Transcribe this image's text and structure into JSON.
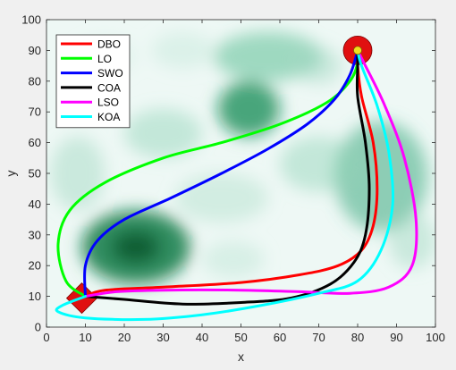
{
  "chart_data": {
    "type": "line",
    "xlabel": "x",
    "ylabel": "y",
    "xlim": [
      0,
      100
    ],
    "ylim": [
      0,
      100
    ],
    "xticks": [
      0,
      10,
      20,
      30,
      40,
      50,
      60,
      70,
      80,
      90,
      100
    ],
    "yticks": [
      0,
      10,
      20,
      30,
      40,
      50,
      60,
      70,
      80,
      90,
      100
    ],
    "grid": false,
    "legend_position": "top-left",
    "background": "green-white terrain heatmap",
    "start_marker": {
      "label": "start",
      "x": 10,
      "y": 10,
      "shape": "diamond",
      "color": "#e01010"
    },
    "goal_marker": {
      "label": "goal",
      "x": 80,
      "y": 90,
      "shape": "circle",
      "color": "#e01010",
      "inner_color": "#f0e020"
    },
    "series": [
      {
        "name": "DBO",
        "color": "#ff0000",
        "points": [
          [
            10,
            10
          ],
          [
            15,
            12
          ],
          [
            30,
            13
          ],
          [
            50,
            14.5
          ],
          [
            65,
            17
          ],
          [
            75,
            20
          ],
          [
            81,
            25
          ],
          [
            84,
            33
          ],
          [
            85,
            45
          ],
          [
            84,
            60
          ],
          [
            81,
            75
          ],
          [
            80,
            85
          ],
          [
            80,
            90
          ]
        ]
      },
      {
        "name": "LO",
        "color": "#00ff00",
        "points": [
          [
            10,
            10
          ],
          [
            5,
            15
          ],
          [
            3,
            27
          ],
          [
            6,
            38
          ],
          [
            15,
            47
          ],
          [
            30,
            55
          ],
          [
            45,
            60
          ],
          [
            60,
            66
          ],
          [
            72,
            73
          ],
          [
            78,
            80
          ],
          [
            80,
            86
          ],
          [
            80,
            90
          ]
        ]
      },
      {
        "name": "SWO",
        "color": "#0000ff",
        "points": [
          [
            10,
            10
          ],
          [
            10,
            20
          ],
          [
            13,
            28
          ],
          [
            20,
            35
          ],
          [
            32,
            42
          ],
          [
            45,
            50
          ],
          [
            57,
            58
          ],
          [
            67,
            66
          ],
          [
            74,
            74
          ],
          [
            78,
            82
          ],
          [
            80,
            90
          ]
        ]
      },
      {
        "name": "COA",
        "color": "#000000",
        "points": [
          [
            10,
            10
          ],
          [
            20,
            9
          ],
          [
            35,
            7.5
          ],
          [
            50,
            8
          ],
          [
            63,
            9.5
          ],
          [
            73,
            14
          ],
          [
            79,
            21
          ],
          [
            82,
            30
          ],
          [
            83,
            45
          ],
          [
            82,
            60
          ],
          [
            80,
            75
          ],
          [
            80,
            85
          ],
          [
            80,
            90
          ]
        ]
      },
      {
        "name": "LSO",
        "color": "#ff00ff",
        "points": [
          [
            10,
            10
          ],
          [
            18,
            11.5
          ],
          [
            30,
            12
          ],
          [
            50,
            12
          ],
          [
            65,
            11.5
          ],
          [
            78,
            11
          ],
          [
            88,
            13
          ],
          [
            94,
            20
          ],
          [
            95,
            35
          ],
          [
            92,
            55
          ],
          [
            87,
            72
          ],
          [
            82,
            85
          ],
          [
            80,
            90
          ]
        ]
      },
      {
        "name": "KOA",
        "color": "#00ffff",
        "points": [
          [
            10,
            10
          ],
          [
            4,
            7
          ],
          [
            3,
            5
          ],
          [
            10,
            3
          ],
          [
            25,
            2.5
          ],
          [
            40,
            4
          ],
          [
            55,
            7
          ],
          [
            70,
            11
          ],
          [
            80,
            15
          ],
          [
            86,
            25
          ],
          [
            89,
            40
          ],
          [
            88,
            57
          ],
          [
            85,
            72
          ],
          [
            81,
            85
          ],
          [
            80,
            90
          ]
        ]
      }
    ]
  }
}
